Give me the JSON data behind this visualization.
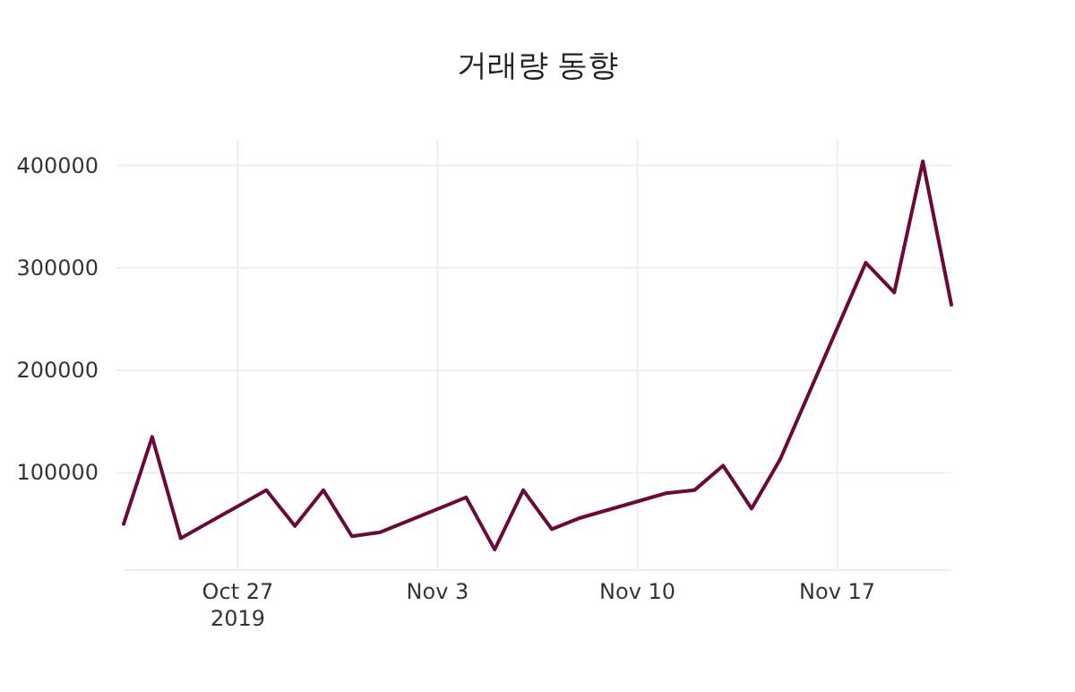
{
  "chart_data": {
    "type": "line",
    "title": "거래량 동향",
    "x": [
      "2019-10-23",
      "2019-10-24",
      "2019-10-25",
      "2019-10-28",
      "2019-10-29",
      "2019-10-30",
      "2019-10-31",
      "2019-11-01",
      "2019-11-04",
      "2019-11-05",
      "2019-11-06",
      "2019-11-07",
      "2019-11-08",
      "2019-11-11",
      "2019-11-12",
      "2019-11-13",
      "2019-11-14",
      "2019-11-15",
      "2019-11-18",
      "2019-11-19",
      "2019-11-20",
      "2019-11-21"
    ],
    "series": [
      {
        "color": "#6b0a3a",
        "values": [
          50000,
          135000,
          36000,
          83000,
          48000,
          83000,
          38000,
          42000,
          76000,
          25000,
          83000,
          45000,
          56000,
          80000,
          83000,
          107000,
          65000,
          113000,
          305000,
          276000,
          404000,
          264000
        ]
      }
    ],
    "xlim": [
      "2019-10-23",
      "2019-11-21"
    ],
    "xticks": [
      {
        "value": "2019-10-27",
        "label": "Oct 27\n2019"
      },
      {
        "value": "2019-11-03",
        "label": "Nov 3"
      },
      {
        "value": "2019-11-10",
        "label": "Nov 10"
      },
      {
        "value": "2019-11-17",
        "label": "Nov 17"
      }
    ],
    "ylim": [
      5000,
      425000
    ],
    "yticks": [
      100000,
      200000,
      300000,
      400000
    ],
    "grid": true
  }
}
